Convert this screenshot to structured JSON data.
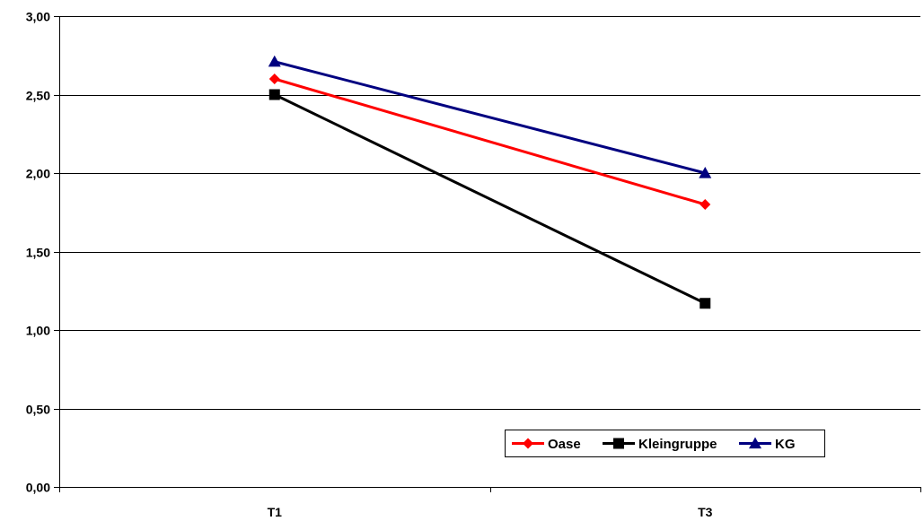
{
  "chart_data": {
    "type": "line",
    "title": "",
    "xlabel": "",
    "ylabel": "",
    "categories": [
      "T1",
      "T3"
    ],
    "ylim": [
      0,
      3
    ],
    "yticks": [
      0,
      0.5,
      1,
      1.5,
      2,
      2.5,
      3
    ],
    "ytick_labels": [
      "0,00",
      "0,50",
      "1,00",
      "1,50",
      "2,00",
      "2,50",
      "3,00"
    ],
    "grid": "horizontal",
    "legend_position": "bottom-right",
    "series": [
      {
        "name": "Oase",
        "values": [
          2.6,
          1.8
        ],
        "color": "#ff0000",
        "marker": "diamond"
      },
      {
        "name": "Kleingruppe",
        "values": [
          2.5,
          1.17
        ],
        "color": "#000000",
        "marker": "square"
      },
      {
        "name": "KG",
        "values": [
          2.71,
          2.0
        ],
        "color": "#000080",
        "marker": "triangle"
      }
    ]
  }
}
